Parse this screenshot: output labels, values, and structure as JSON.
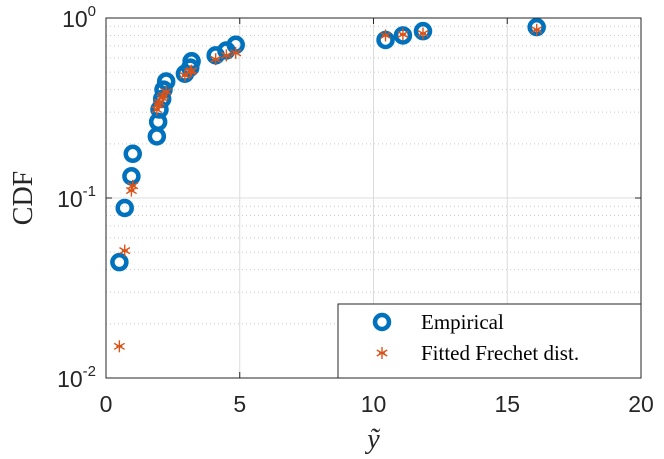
{
  "chart_data": {
    "type": "scatter",
    "title": "",
    "xlabel": "ỹ",
    "ylabel": "CDF",
    "xlim": [
      0,
      20
    ],
    "ylim": [
      0.01,
      1
    ],
    "yscale": "log",
    "xticks": [
      0,
      5,
      10,
      15,
      20
    ],
    "xtick_labels": [
      "0",
      "5",
      "10",
      "15",
      "20"
    ],
    "ytick_labels": [
      {
        "base": "10",
        "exp": "-2"
      },
      {
        "base": "10",
        "exp": "-1"
      },
      {
        "base": "10",
        "exp": "0"
      }
    ],
    "grid": true,
    "legend_position": "bottom-right",
    "series": [
      {
        "name": "Empirical",
        "marker": "circle",
        "color": "#0072BD",
        "points": [
          [
            0.5,
            0.044
          ],
          [
            0.7,
            0.088
          ],
          [
            0.95,
            0.132
          ],
          [
            1.0,
            0.176
          ],
          [
            1.9,
            0.22
          ],
          [
            1.95,
            0.265
          ],
          [
            2.0,
            0.31
          ],
          [
            2.1,
            0.355
          ],
          [
            2.15,
            0.4
          ],
          [
            2.25,
            0.444
          ],
          [
            2.95,
            0.49
          ],
          [
            3.15,
            0.53
          ],
          [
            3.2,
            0.575
          ],
          [
            4.1,
            0.62
          ],
          [
            4.5,
            0.66
          ],
          [
            4.85,
            0.71
          ],
          [
            10.45,
            0.755
          ],
          [
            11.1,
            0.8
          ],
          [
            11.85,
            0.845
          ],
          [
            16.1,
            0.89
          ]
        ]
      },
      {
        "name": "Fitted Frechet dist.",
        "marker": "asterisk",
        "color": "#D95319",
        "points": [
          [
            0.5,
            0.015
          ],
          [
            0.7,
            0.051
          ],
          [
            0.95,
            0.11
          ],
          [
            1.0,
            0.117
          ],
          [
            1.9,
            0.31
          ],
          [
            1.95,
            0.33
          ],
          [
            2.0,
            0.34
          ],
          [
            2.1,
            0.36
          ],
          [
            2.15,
            0.37
          ],
          [
            2.25,
            0.39
          ],
          [
            2.95,
            0.48
          ],
          [
            3.15,
            0.505
          ],
          [
            3.2,
            0.51
          ],
          [
            4.1,
            0.59
          ],
          [
            4.5,
            0.62
          ],
          [
            4.85,
            0.64
          ],
          [
            10.45,
            0.8
          ],
          [
            11.1,
            0.81
          ],
          [
            11.85,
            0.82
          ],
          [
            16.1,
            0.86
          ]
        ]
      }
    ]
  }
}
